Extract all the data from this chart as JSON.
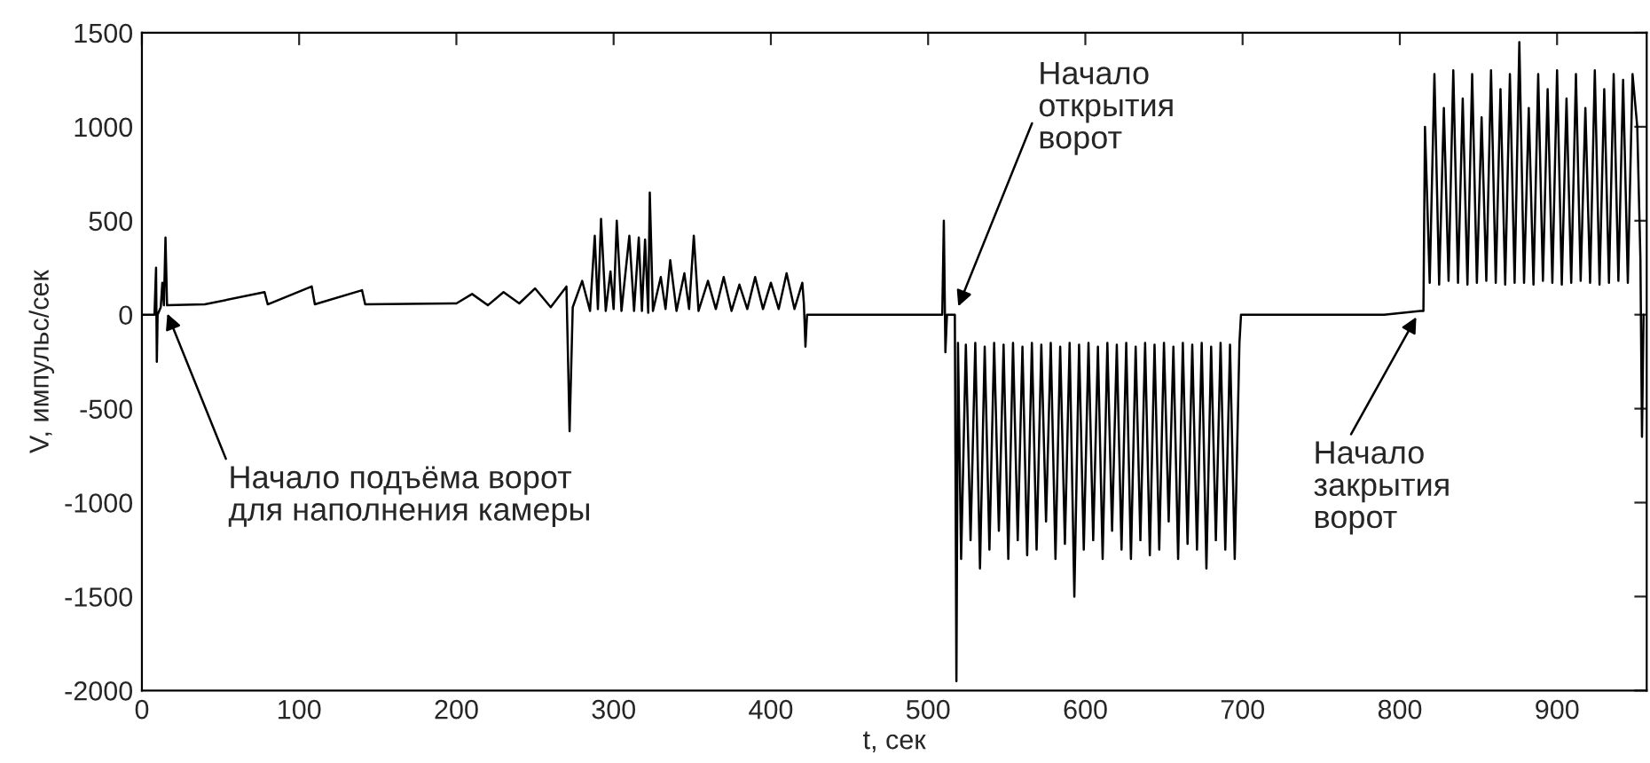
{
  "chart_data": {
    "type": "line",
    "xlabel": "t, сек",
    "ylabel": "V, импульс/сек",
    "xlim": [
      0,
      957
    ],
    "ylim": [
      -2000,
      1500
    ],
    "xticks": [
      0,
      100,
      200,
      300,
      400,
      500,
      600,
      700,
      800,
      900
    ],
    "yticks": [
      -2000,
      -1500,
      -1000,
      -500,
      0,
      500,
      1000,
      1500
    ],
    "grid": false,
    "marker": "none",
    "line_style": "solid",
    "annotations": [
      {
        "text": "Начало подъёма ворот\nдля наполнения камеры",
        "x": 15,
        "y": 30
      },
      {
        "text": "Начало\nоткрытия\nворот",
        "x": 518,
        "y": 20
      },
      {
        "text": "Начало\nзакрытия\nворот",
        "x": 812,
        "y": 10
      }
    ],
    "series": [
      {
        "color": "#000000",
        "x": [
          0,
          8,
          9,
          9.5,
          10,
          12,
          13,
          14,
          15,
          16,
          40,
          78,
          80,
          108,
          110,
          140,
          142,
          200,
          210,
          220,
          230,
          240,
          250,
          260,
          270,
          272,
          274,
          280,
          285,
          288,
          290,
          292,
          295,
          298,
          300,
          302,
          305,
          310,
          313,
          316,
          318,
          320,
          322,
          323,
          325,
          330,
          333,
          336,
          340,
          345,
          348,
          351,
          354,
          360,
          365,
          370,
          375,
          380,
          385,
          390,
          395,
          400,
          405,
          410,
          415,
          420,
          421,
          422,
          423,
          509,
          510,
          511,
          512,
          517,
          518,
          519,
          521,
          524,
          527,
          530,
          533,
          536,
          539,
          542,
          545,
          548,
          551,
          554,
          557,
          560,
          563,
          566,
          569,
          572,
          575,
          578,
          581,
          584,
          587,
          590,
          593,
          596,
          599,
          602,
          605,
          608,
          611,
          614,
          617,
          620,
          623,
          626,
          629,
          632,
          635,
          638,
          641,
          644,
          647,
          650,
          653,
          656,
          659,
          662,
          665,
          668,
          671,
          674,
          677,
          680,
          683,
          686,
          689,
          692,
          695,
          698,
          699,
          790,
          813,
          815,
          816,
          819,
          822,
          825,
          828,
          831,
          834,
          837,
          840,
          843,
          846,
          849,
          852,
          855,
          858,
          861,
          864,
          867,
          870,
          873,
          876,
          879,
          882,
          885,
          888,
          891,
          894,
          897,
          900,
          903,
          906,
          909,
          912,
          915,
          918,
          921,
          924,
          927,
          930,
          933,
          936,
          939,
          942,
          945,
          948,
          951,
          953,
          954,
          955
        ],
        "values": [
          0,
          0,
          250,
          -250,
          0,
          40,
          170,
          50,
          410,
          50,
          55,
          120,
          55,
          150,
          55,
          130,
          55,
          60,
          110,
          50,
          120,
          60,
          140,
          40,
          150,
          -620,
          40,
          180,
          20,
          420,
          30,
          510,
          20,
          230,
          30,
          500,
          20,
          420,
          20,
          410,
          20,
          400,
          10,
          650,
          20,
          200,
          30,
          290,
          20,
          220,
          30,
          420,
          20,
          180,
          30,
          200,
          20,
          160,
          30,
          200,
          30,
          170,
          30,
          220,
          30,
          170,
          60,
          -170,
          0,
          0,
          500,
          -200,
          0,
          0,
          -1950,
          -150,
          -1300,
          -160,
          -1200,
          -150,
          -1350,
          -170,
          -1250,
          -150,
          -1150,
          -160,
          -1300,
          -150,
          -1200,
          -170,
          -1280,
          -150,
          -1250,
          -160,
          -1100,
          -150,
          -1300,
          -170,
          -1220,
          -150,
          -1500,
          -160,
          -1250,
          -150,
          -1200,
          -170,
          -1300,
          -150,
          -1150,
          -160,
          -1250,
          -150,
          -1300,
          -170,
          -1200,
          -150,
          -1280,
          -160,
          -1250,
          -150,
          -1100,
          -170,
          -1300,
          -150,
          -1220,
          -160,
          -1250,
          -150,
          -1350,
          -170,
          -1200,
          -150,
          -1250,
          -160,
          -1300,
          -150,
          0,
          0,
          20,
          20,
          1000,
          170,
          1280,
          160,
          1100,
          180,
          1300,
          170,
          1150,
          160,
          1280,
          170,
          1050,
          180,
          1300,
          170,
          1200,
          160,
          1280,
          170,
          1450,
          170,
          1100,
          160,
          1280,
          180,
          1200,
          170,
          1300,
          160,
          1150,
          170,
          1280,
          180,
          1100,
          170,
          1300,
          160,
          1200,
          170,
          1280,
          180,
          1250,
          170,
          1280,
          1000,
          300,
          -650,
          0
        ]
      }
    ]
  }
}
